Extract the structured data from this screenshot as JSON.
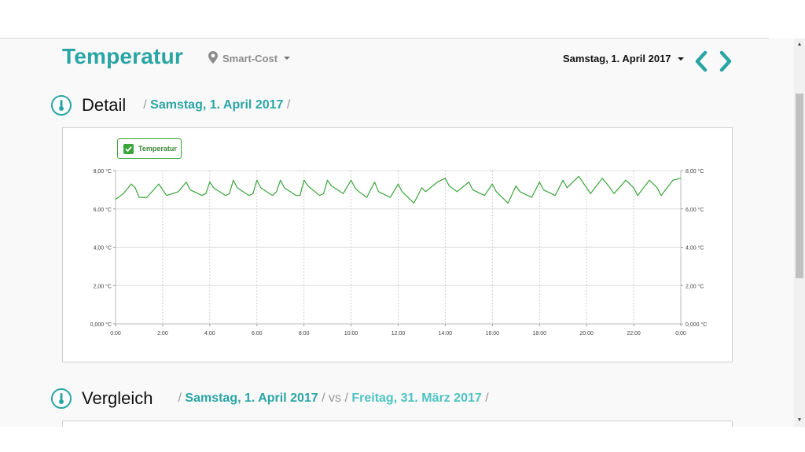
{
  "header": {
    "title": "Temperatur",
    "location": "Smart-Cost",
    "date": "Samstag, 1. April 2017"
  },
  "detail": {
    "title": "Detail",
    "crumb_date": "Samstag, 1. April 2017"
  },
  "vergleich": {
    "title": "Vergleich",
    "date_a": "Samstag, 1. April 2017",
    "vs": "vs",
    "date_b": "Freitag, 31. März 2017"
  },
  "legend": {
    "label": "Temperatur"
  },
  "colors": {
    "accent": "#2aa5a5",
    "series": "#3aa53a"
  },
  "chart_data": {
    "type": "line",
    "series": [
      {
        "name": "Temperatur",
        "x": [
          "0:00",
          "0:20",
          "0:40",
          "0:50",
          "1:00",
          "1:20",
          "1:50",
          "2:00",
          "2:10",
          "2:40",
          "3:00",
          "3:10",
          "3:40",
          "3:50",
          "4:00",
          "4:10",
          "4:40",
          "4:50",
          "5:00",
          "5:10",
          "5:40",
          "5:50",
          "6:00",
          "6:10",
          "6:40",
          "6:50",
          "7:00",
          "7:10",
          "7:40",
          "7:50",
          "8:00",
          "8:10",
          "8:40",
          "8:50",
          "9:00",
          "9:10",
          "9:40",
          "10:00",
          "10:10",
          "10:20",
          "10:40",
          "11:00",
          "11:10",
          "11:40",
          "12:00",
          "12:10",
          "12:40",
          "13:00",
          "13:10",
          "13:40",
          "14:00",
          "14:10",
          "14:30",
          "15:00",
          "15:10",
          "15:40",
          "16:00",
          "16:10",
          "16:40",
          "17:00",
          "17:10",
          "17:40",
          "18:00",
          "18:10",
          "18:40",
          "19:00",
          "19:10",
          "19:40",
          "20:00",
          "20:10",
          "20:40",
          "21:00",
          "21:10",
          "21:40",
          "22:00",
          "22:10",
          "22:40",
          "23:00",
          "23:10",
          "23:40",
          "24:00"
        ],
        "values": [
          6.5,
          6.8,
          7.3,
          7.1,
          6.6,
          6.6,
          7.3,
          7.0,
          6.7,
          6.9,
          7.4,
          7.0,
          6.7,
          6.8,
          7.4,
          7.1,
          6.7,
          6.8,
          7.5,
          7.1,
          6.7,
          6.8,
          7.5,
          7.1,
          6.7,
          6.9,
          7.5,
          7.1,
          6.7,
          6.7,
          7.5,
          7.2,
          6.7,
          6.8,
          7.5,
          7.2,
          6.8,
          7.5,
          7.1,
          6.9,
          6.6,
          7.4,
          6.9,
          6.6,
          7.3,
          6.9,
          6.3,
          7.1,
          6.9,
          7.4,
          7.6,
          7.2,
          6.9,
          7.4,
          7.0,
          6.7,
          7.3,
          6.9,
          6.3,
          7.2,
          6.9,
          6.6,
          7.4,
          7.0,
          6.7,
          7.5,
          7.1,
          7.7,
          7.1,
          6.8,
          7.6,
          7.1,
          6.8,
          7.5,
          7.1,
          6.7,
          7.5,
          7.1,
          6.7,
          7.5,
          7.6
        ]
      }
    ],
    "ylim": [
      0,
      8
    ],
    "yticks": [
      "0,000 °C",
      "2,00 °C",
      "4,00 °C",
      "6,00 °C",
      "8,00 °C"
    ],
    "ytick_values": [
      0,
      2,
      4,
      6,
      8
    ],
    "xticks": [
      "0:00",
      "2:00",
      "4:00",
      "6:00",
      "8:00",
      "10:00",
      "12:00",
      "14:00",
      "16:00",
      "18:00",
      "20:00",
      "22:00",
      "0:00"
    ],
    "grid": true,
    "legend": "top-left"
  }
}
